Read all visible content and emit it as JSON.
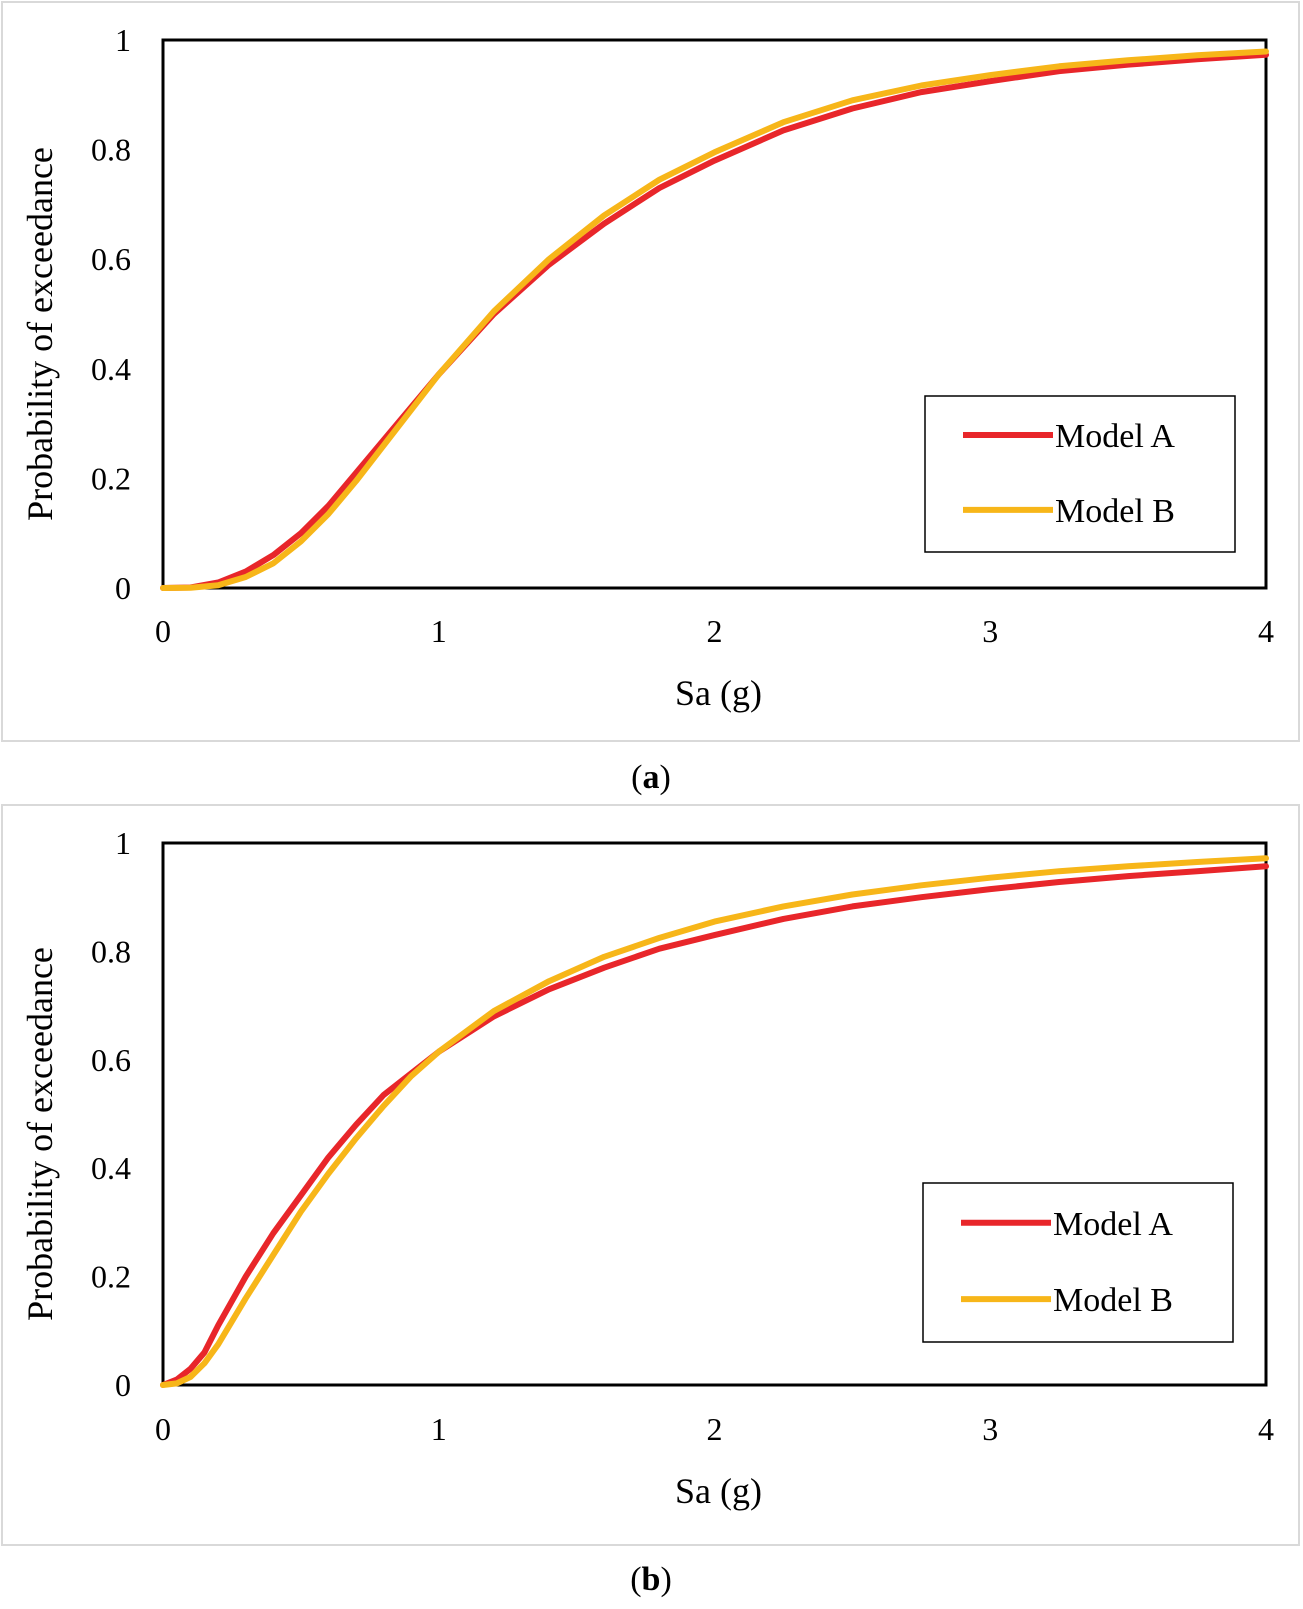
{
  "chart_data": [
    {
      "type": "line",
      "caption": {
        "open": "(",
        "letter": "a",
        "close": ")"
      },
      "xlabel": "Sa (g)",
      "ylabel": "Probability of exceedance",
      "xlim": [
        0,
        4
      ],
      "ylim": [
        0,
        1
      ],
      "x_ticks": [
        "0",
        "1",
        "2",
        "3",
        "4"
      ],
      "y_ticks": [
        "0",
        "0.2",
        "0.4",
        "0.6",
        "0.8",
        "1"
      ],
      "legend_position": "lower-right",
      "x": [
        0,
        0.1,
        0.2,
        0.3,
        0.4,
        0.5,
        0.6,
        0.7,
        0.8,
        0.9,
        1.0,
        1.2,
        1.4,
        1.6,
        1.8,
        2.0,
        2.25,
        2.5,
        2.75,
        3.0,
        3.25,
        3.5,
        3.75,
        4.0
      ],
      "series": [
        {
          "name": "Model A",
          "color": "#e8262a",
          "values": [
            0,
            0.001,
            0.01,
            0.03,
            0.06,
            0.1,
            0.15,
            0.21,
            0.27,
            0.33,
            0.39,
            0.5,
            0.59,
            0.665,
            0.73,
            0.78,
            0.835,
            0.875,
            0.905,
            0.925,
            0.943,
            0.955,
            0.965,
            0.973
          ]
        },
        {
          "name": "Model B",
          "color": "#f7b619",
          "values": [
            0,
            0.0005,
            0.005,
            0.02,
            0.045,
            0.085,
            0.135,
            0.195,
            0.26,
            0.325,
            0.39,
            0.505,
            0.6,
            0.68,
            0.745,
            0.795,
            0.85,
            0.89,
            0.917,
            0.936,
            0.952,
            0.963,
            0.972,
            0.979
          ]
        }
      ]
    },
    {
      "type": "line",
      "caption": {
        "open": "(",
        "letter": "b",
        "close": ")"
      },
      "xlabel": "Sa (g)",
      "ylabel": "Probability of exceedance",
      "xlim": [
        0,
        4
      ],
      "ylim": [
        0,
        1
      ],
      "x_ticks": [
        "0",
        "1",
        "2",
        "3",
        "4"
      ],
      "y_ticks": [
        "0",
        "0.2",
        "0.4",
        "0.6",
        "0.8",
        "1"
      ],
      "legend_position": "lower-right",
      "x": [
        0,
        0.05,
        0.1,
        0.15,
        0.2,
        0.3,
        0.4,
        0.5,
        0.6,
        0.7,
        0.8,
        0.9,
        1.0,
        1.2,
        1.4,
        1.6,
        1.8,
        2.0,
        2.25,
        2.5,
        2.75,
        3.0,
        3.25,
        3.5,
        3.75,
        4.0
      ],
      "series": [
        {
          "name": "Model A",
          "color": "#e8262a",
          "values": [
            0,
            0.01,
            0.03,
            0.06,
            0.11,
            0.2,
            0.28,
            0.35,
            0.42,
            0.48,
            0.535,
            0.575,
            0.615,
            0.68,
            0.73,
            0.77,
            0.805,
            0.83,
            0.86,
            0.883,
            0.9,
            0.915,
            0.928,
            0.939,
            0.948,
            0.957
          ]
        },
        {
          "name": "Model B",
          "color": "#f7b619",
          "values": [
            0,
            0.003,
            0.015,
            0.04,
            0.075,
            0.16,
            0.24,
            0.32,
            0.39,
            0.455,
            0.515,
            0.57,
            0.615,
            0.69,
            0.745,
            0.79,
            0.825,
            0.855,
            0.883,
            0.905,
            0.922,
            0.936,
            0.948,
            0.957,
            0.965,
            0.972
          ]
        }
      ]
    }
  ]
}
